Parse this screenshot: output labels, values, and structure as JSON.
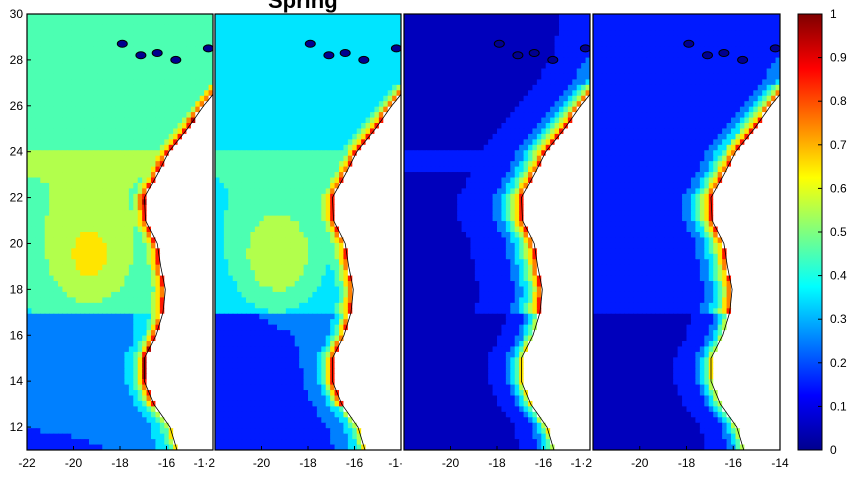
{
  "chart_data": {
    "type": "heatmap",
    "title_fragments": [
      "Spring"
    ],
    "xlim": [
      -22,
      -14
    ],
    "ylim": [
      11,
      30
    ],
    "panels": [
      {
        "id": "panel-1",
        "x_tick_labels": [
          "-22",
          "-20",
          "-18",
          "-16",
          "-1·2"
        ]
      },
      {
        "id": "panel-2",
        "x_tick_labels": [
          "-20",
          "-18",
          "-16",
          "-1·"
        ]
      },
      {
        "id": "panel-3",
        "x_tick_labels": [
          "-20",
          "-18",
          "-16",
          "-1·2"
        ]
      },
      {
        "id": "panel-4",
        "x_tick_labels": [
          "-20",
          "-18",
          "-16",
          "-14"
        ]
      }
    ],
    "y_tick_labels": [
      "30",
      "28",
      "26",
      "24",
      "22",
      "20",
      "18",
      "16",
      "14",
      "12"
    ],
    "colorbar": {
      "min": 0,
      "max": 1,
      "tick_labels": [
        "1",
        "0.9",
        "0.8",
        "0.7",
        "0.6",
        "0.5",
        "0.4",
        "0.3",
        "0.2",
        "0.1",
        "0"
      ],
      "colormap": "jet"
    },
    "colors": {
      "land": "#ffffff",
      "frame": "#000000",
      "contour": "#000000",
      "jet_stops": [
        "#00008f",
        "#0000ff",
        "#007fff",
        "#00ffff",
        "#7fff7f",
        "#ffff00",
        "#ff7f00",
        "#ff0000",
        "#7f0000"
      ]
    }
  }
}
